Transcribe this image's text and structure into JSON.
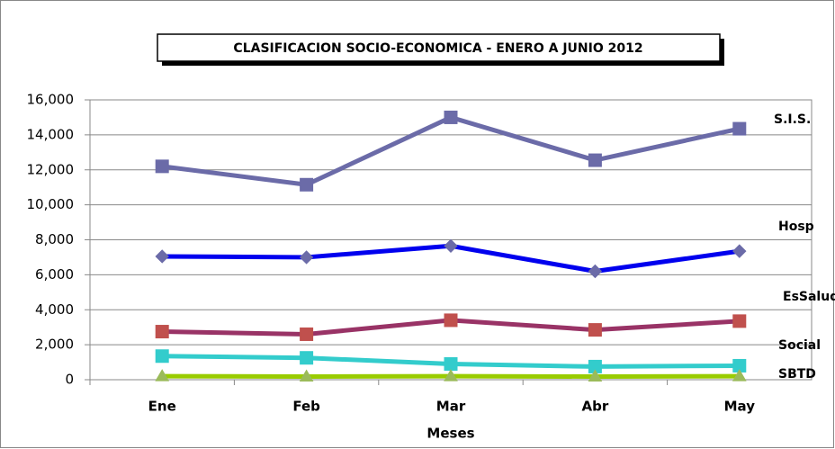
{
  "chart_data": {
    "type": "line",
    "title": "CLASIFICACION SOCIO-ECONOMICA - ENERO A JUNIO 2012",
    "x_label": "Meses",
    "categories": [
      "Ene",
      "Feb",
      "Mar",
      "Abr",
      "May"
    ],
    "series": [
      {
        "name": "S.I.S.",
        "color": "#6b6ba8",
        "marker": "square",
        "marker_color": "#6b6ba8",
        "values": [
          12200,
          11150,
          15000,
          12550,
          14350
        ]
      },
      {
        "name": "Hosp",
        "color": "#0000ee",
        "marker": "diamond",
        "marker_color": "#6b6ba8",
        "values": [
          7050,
          7000,
          7650,
          6200,
          7350
        ]
      },
      {
        "name": "EsSalud",
        "color": "#993366",
        "marker": "square",
        "marker_color": "#c0504d",
        "values": [
          2750,
          2600,
          3400,
          2850,
          3350
        ]
      },
      {
        "name": "Social",
        "color": "#33cccc",
        "marker": "square",
        "marker_color": "#33cccc",
        "values": [
          1350,
          1250,
          900,
          750,
          800
        ]
      },
      {
        "name": "SBTD",
        "color": "#99cc00",
        "marker": "triangle",
        "marker_color": "#9bbb59",
        "values": [
          200,
          180,
          200,
          180,
          200
        ]
      }
    ],
    "ylim": [
      0,
      16000
    ],
    "yticks": [
      0,
      {
        "value": 2000,
        "label": "2,000"
      },
      {
        "value": 4000,
        "label": "4,000"
      },
      {
        "value": 6000,
        "label": "6,000"
      },
      {
        "value": 8000,
        "label": "8,000"
      },
      {
        "value": 10000,
        "label": "10,000"
      },
      {
        "value": 12000,
        "label": "12,000"
      },
      {
        "value": 14000,
        "label": "14,000"
      },
      {
        "value": 16000,
        "label": "16,000"
      }
    ],
    "grid": true
  }
}
